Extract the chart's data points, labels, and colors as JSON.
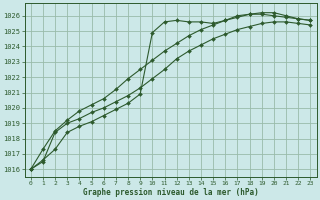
{
  "title": "Graphe pression niveau de la mer (hPa)",
  "background_color": "#cce8e8",
  "grid_color": "#99bbaa",
  "line_color": "#2d5a2d",
  "marker_color": "#2d5a2d",
  "xlim": [
    -0.5,
    23.5
  ],
  "ylim": [
    1015.5,
    1026.8
  ],
  "yticks": [
    1016,
    1017,
    1018,
    1019,
    1020,
    1021,
    1022,
    1023,
    1024,
    1025,
    1026
  ],
  "xticks": [
    0,
    1,
    2,
    3,
    4,
    5,
    6,
    7,
    8,
    9,
    10,
    11,
    12,
    13,
    14,
    15,
    16,
    17,
    18,
    19,
    20,
    21,
    22,
    23
  ],
  "line1_x": [
    0,
    1,
    2,
    3,
    4,
    5,
    6,
    7,
    8,
    9,
    10,
    11,
    12,
    13,
    14,
    15,
    16,
    17,
    18,
    19,
    20,
    21,
    22,
    23
  ],
  "line1_y": [
    1016.0,
    1016.6,
    1017.3,
    1018.4,
    1018.8,
    1019.1,
    1019.5,
    1019.9,
    1020.3,
    1020.9,
    1024.9,
    1025.6,
    1025.7,
    1025.6,
    1025.6,
    1025.5,
    1025.7,
    1026.0,
    1026.1,
    1026.1,
    1026.0,
    1025.9,
    1025.8,
    1025.7
  ],
  "line2_x": [
    0,
    1,
    2,
    3,
    4,
    5,
    6,
    7,
    8,
    9,
    10,
    11,
    12,
    13,
    14,
    15,
    16,
    17,
    18,
    19,
    20,
    21,
    22,
    23
  ],
  "line2_y": [
    1016.0,
    1016.5,
    1018.4,
    1019.0,
    1019.3,
    1019.7,
    1020.0,
    1020.4,
    1020.8,
    1021.3,
    1021.9,
    1022.5,
    1023.2,
    1023.7,
    1024.1,
    1024.5,
    1024.8,
    1025.1,
    1025.3,
    1025.5,
    1025.6,
    1025.6,
    1025.5,
    1025.4
  ],
  "line3_x": [
    0,
    1,
    2,
    3,
    4,
    5,
    6,
    7,
    8,
    9,
    10,
    11,
    12,
    13,
    14,
    15,
    16,
    17,
    18,
    19,
    20,
    21,
    22,
    23
  ],
  "line3_y": [
    1016.0,
    1017.3,
    1018.5,
    1019.2,
    1019.8,
    1020.2,
    1020.6,
    1021.2,
    1021.9,
    1022.5,
    1023.1,
    1023.7,
    1024.2,
    1024.7,
    1025.1,
    1025.4,
    1025.7,
    1025.9,
    1026.1,
    1026.2,
    1026.2,
    1026.0,
    1025.8,
    1025.7
  ]
}
